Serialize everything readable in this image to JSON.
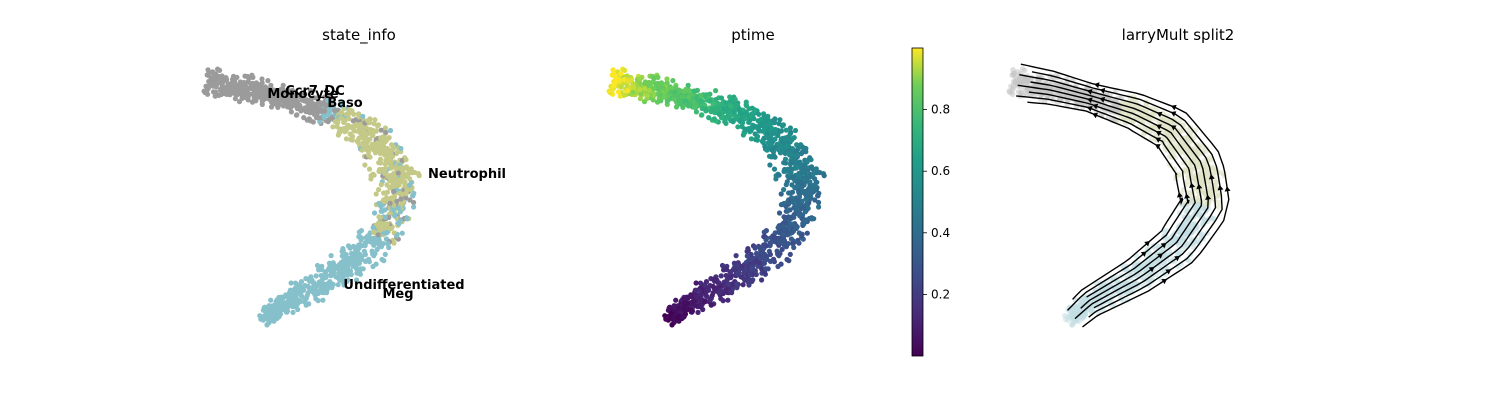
{
  "chart_data": [
    {
      "type": "scatter",
      "title": "state_info",
      "legend": "on data",
      "categories": [
        "Ccr7_DC",
        "Monocyte",
        "Baso",
        "Neutrophil",
        "Undifferentiated",
        "Meg"
      ],
      "cluster_labels": [
        {
          "name": "Ccr7_DC"
        },
        {
          "name": "Monocyte"
        },
        {
          "name": "Baso"
        },
        {
          "name": "Neutrophil"
        },
        {
          "name": "Undifferentiated"
        },
        {
          "name": "Meg"
        }
      ],
      "colors": {
        "grey": "#9b9b9b",
        "olive": "#c5c987",
        "teal": "#86c0ca"
      }
    },
    {
      "type": "scatter",
      "title": "ptime",
      "colorscale": "viridis",
      "colorbar": {
        "ticks": [
          "0.2",
          "0.4",
          "0.6",
          "0.8"
        ],
        "range": [
          0.0,
          1.0
        ]
      }
    },
    {
      "type": "streamplot",
      "title": "larryMult split2",
      "colors": {
        "stream": "#000000"
      }
    }
  ]
}
